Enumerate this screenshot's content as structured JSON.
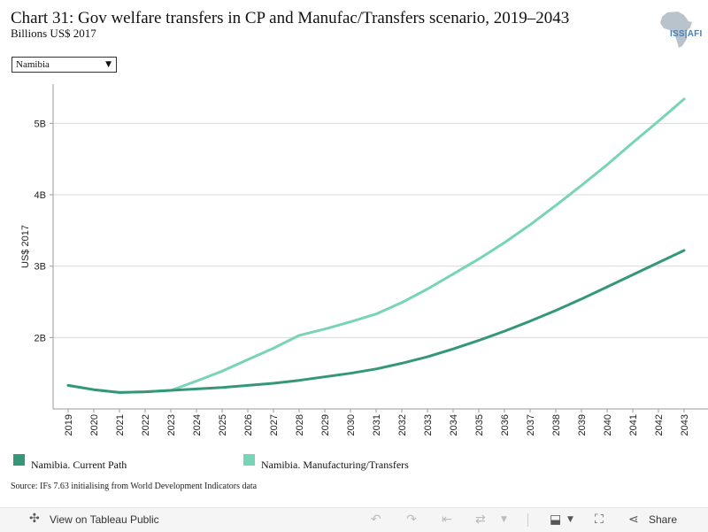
{
  "header": {
    "title": "Chart 31: Gov welfare transfers in CP and Manufac/Transfers scenario, 2019–2043",
    "subtitle": "Billions US$ 2017"
  },
  "logo": {
    "text": "ISS|AFI"
  },
  "filter": {
    "selected": "Namibia"
  },
  "chart_data": {
    "type": "line",
    "x": [
      2019,
      2020,
      2021,
      2022,
      2023,
      2024,
      2025,
      2026,
      2027,
      2028,
      2029,
      2030,
      2031,
      2032,
      2033,
      2034,
      2035,
      2036,
      2037,
      2038,
      2039,
      2040,
      2041,
      2042,
      2043
    ],
    "x_tick_labels": [
      "2019",
      "2020",
      "2021",
      "2022",
      "2023",
      "2024",
      "2025",
      "2026",
      "2027",
      "2028",
      "2029",
      "2030",
      "2031",
      "2032",
      "2033",
      "2034",
      "2035",
      "2036",
      "2037",
      "2038",
      "2039",
      "2040",
      "2041",
      "2042",
      "2043"
    ],
    "ylabel": "US$ 2017",
    "ylim": [
      1.0,
      5.55
    ],
    "y_ticks": [
      2,
      3,
      4,
      5
    ],
    "y_tick_labels": [
      "2B",
      "3B",
      "4B",
      "5B"
    ],
    "grid": true,
    "legend_position": "bottom",
    "series": [
      {
        "name": "Namibia. Current Path",
        "color": "#35977a",
        "values": [
          1.33,
          1.27,
          1.23,
          1.24,
          1.26,
          1.28,
          1.3,
          1.33,
          1.36,
          1.4,
          1.45,
          1.5,
          1.56,
          1.64,
          1.73,
          1.84,
          1.96,
          2.09,
          2.23,
          2.38,
          2.54,
          2.71,
          2.88,
          3.05,
          3.22
        ]
      },
      {
        "name": "Namibia. Manufacturing/Transfers",
        "color": "#78d4b6",
        "values": [
          1.33,
          1.27,
          1.23,
          1.24,
          1.26,
          1.39,
          1.53,
          1.69,
          1.85,
          2.03,
          2.12,
          2.22,
          2.33,
          2.49,
          2.68,
          2.89,
          3.1,
          3.33,
          3.58,
          3.85,
          4.13,
          4.42,
          4.73,
          5.03,
          5.34
        ]
      }
    ]
  },
  "source": "Source: IFs 7.63 initialising from World Development Indicators data",
  "toolbar": {
    "view_label": "View on Tableau Public",
    "share_label": "Share"
  }
}
